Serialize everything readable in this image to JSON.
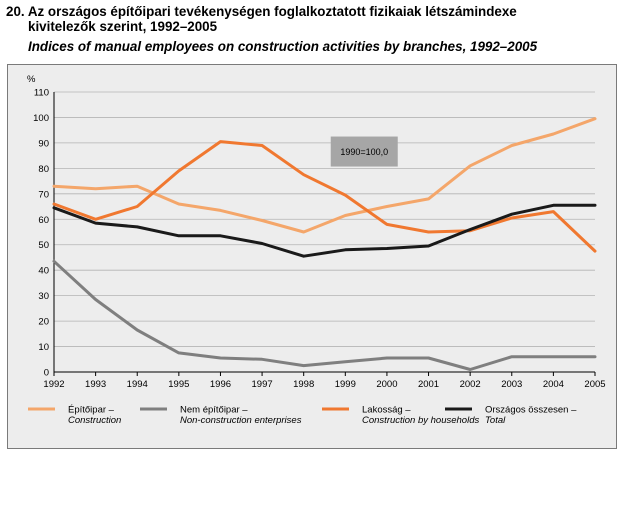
{
  "title_hu_line1": "20. Az országos építőipari tevékenységen foglalkoztatott fizikaiak létszámindexe",
  "title_hu_line2": "kivitelezők szerint, 1992–2005",
  "title_en": "Indices of manual employees on construction activities by branches, 1992–2005",
  "chart_data": {
    "type": "line",
    "x": [
      1992,
      1993,
      1994,
      1995,
      1996,
      1997,
      1998,
      1999,
      2000,
      2001,
      2002,
      2003,
      2004,
      2005
    ],
    "ylabel": "%",
    "ylim": [
      0,
      110
    ],
    "yticks": [
      0,
      10,
      20,
      30,
      40,
      50,
      60,
      70,
      80,
      90,
      100,
      110
    ],
    "grid": true,
    "annotation": "1990=100,0",
    "legend_position": "bottom",
    "series": [
      {
        "name": "Építőipar – Construction",
        "name_hu": "Építőipar –",
        "name_en": "Construction",
        "color": "#f4a66a",
        "values": [
          73,
          72,
          73,
          66,
          63.5,
          59.5,
          55,
          61.5,
          65,
          68,
          81,
          89,
          93.5,
          99.5
        ]
      },
      {
        "name": "Nem építőipar – Non-construction enterprises",
        "name_hu": "Nem építőipar –",
        "name_en": "Non-construction enterprises",
        "color": "#7f7f7f",
        "values": [
          43.5,
          28.5,
          16.5,
          7.5,
          5.5,
          5,
          2.5,
          4,
          5.5,
          5.5,
          1,
          6,
          6,
          6
        ]
      },
      {
        "name": "Lakosság – Construction by households",
        "name_hu": "Lakosság –",
        "name_en": "Construction by households",
        "color": "#f07830",
        "values": [
          66,
          60,
          65,
          79,
          90.5,
          89,
          77.5,
          69.5,
          58,
          55,
          55.5,
          60.5,
          63,
          47.5
        ]
      },
      {
        "name": "Országos összesen – Total",
        "name_hu": "Országos összesen –",
        "name_en": "Total",
        "color": "#1a1a1a",
        "values": [
          64.5,
          58.5,
          57,
          53.5,
          53.5,
          50.5,
          45.5,
          48,
          48.5,
          49.5,
          56,
          62,
          65.5,
          65.5
        ]
      }
    ]
  }
}
